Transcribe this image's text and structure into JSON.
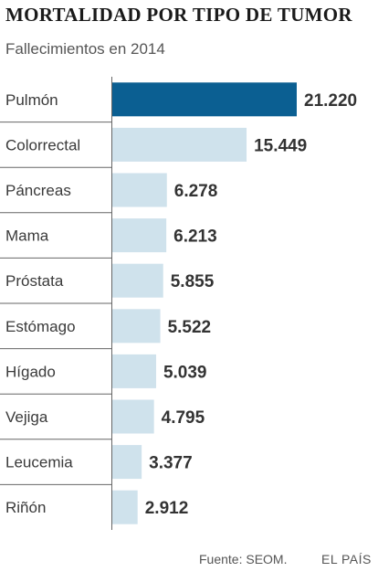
{
  "header": {
    "title": "MORTALIDAD POR TIPO DE TUMOR",
    "subtitle": "Fallecimientos en 2014"
  },
  "footer": {
    "source": "Fuente: SEOM.",
    "brand": "EL PAÍS"
  },
  "colors": {
    "highlight": "#0b5f92",
    "bar": "#cfe2ec",
    "rule": "#666666"
  },
  "chart_data": {
    "type": "bar",
    "orientation": "horizontal",
    "categories": [
      "Pulmón",
      "Colorrectal",
      "Páncreas",
      "Mama",
      "Próstata",
      "Estómago",
      "Hígado",
      "Vejiga",
      "Leucemia",
      "Riñón"
    ],
    "values": [
      21220,
      15449,
      6278,
      6213,
      5855,
      5522,
      5039,
      4795,
      3377,
      2912
    ],
    "value_labels": [
      "21.220",
      "15.449",
      "6.278",
      "6.213",
      "5.855",
      "5.522",
      "5.039",
      "4.795",
      "3.377",
      "2.912"
    ],
    "highlighted_category": "Pulmón"
  }
}
